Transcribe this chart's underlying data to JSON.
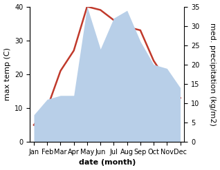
{
  "months": [
    "Jan",
    "Feb",
    "Mar",
    "Apr",
    "May",
    "Jun",
    "Jul",
    "Aug",
    "Sep",
    "Oct",
    "Nov",
    "Dec"
  ],
  "temperature": [
    5,
    10,
    21,
    27,
    40,
    39,
    36,
    34,
    33,
    24,
    18,
    13
  ],
  "precipitation": [
    7,
    11,
    12,
    12,
    35,
    24,
    32,
    34,
    26,
    20,
    19,
    14
  ],
  "temp_color": "#c0392b",
  "precip_color": "#b8cfe8",
  "left_ylim": [
    0,
    40
  ],
  "right_ylim": [
    0,
    35
  ],
  "left_yticks": [
    0,
    10,
    20,
    30,
    40
  ],
  "right_yticks": [
    0,
    5,
    10,
    15,
    20,
    25,
    30,
    35
  ],
  "ylabel_left": "max temp (C)",
  "ylabel_right": "med. precipitation (kg/m2)",
  "xlabel": "date (month)",
  "label_fontsize": 8,
  "tick_fontsize": 7
}
